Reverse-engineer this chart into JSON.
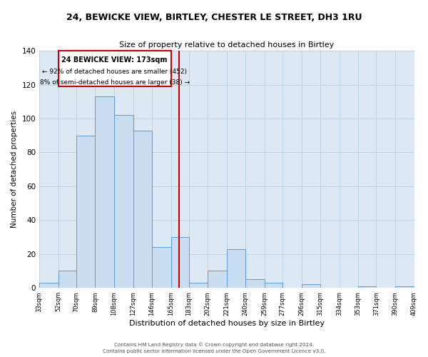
{
  "title": "24, BEWICKE VIEW, BIRTLEY, CHESTER LE STREET, DH3 1RU",
  "subtitle": "Size of property relative to detached houses in Birtley",
  "xlabel": "Distribution of detached houses by size in Birtley",
  "ylabel": "Number of detached properties",
  "bin_edges": [
    33,
    52,
    70,
    89,
    108,
    127,
    146,
    165,
    183,
    202,
    221,
    240,
    259,
    277,
    296,
    315,
    334,
    353,
    371,
    390,
    409
  ],
  "bin_labels": [
    "33sqm",
    "52sqm",
    "70sqm",
    "89sqm",
    "108sqm",
    "127sqm",
    "146sqm",
    "165sqm",
    "183sqm",
    "202sqm",
    "221sqm",
    "240sqm",
    "259sqm",
    "277sqm",
    "296sqm",
    "315sqm",
    "334sqm",
    "353sqm",
    "371sqm",
    "390sqm",
    "409sqm"
  ],
  "bar_heights": [
    3,
    10,
    90,
    113,
    102,
    93,
    24,
    30,
    3,
    10,
    23,
    5,
    3,
    0,
    2,
    0,
    0,
    1,
    0,
    1
  ],
  "bar_fill": "#c9ddf0",
  "bar_edge": "#5b9bd5",
  "vline_x": 173,
  "vline_color": "#cc0000",
  "annotation_title": "24 BEWICKE VIEW: 173sqm",
  "annotation_line1": "← 92% of detached houses are smaller (452)",
  "annotation_line2": "8% of semi-detached houses are larger (38) →",
  "annotation_box_edge": "#cc0000",
  "ylim": [
    0,
    140
  ],
  "yticks": [
    0,
    20,
    40,
    60,
    80,
    100,
    120,
    140
  ],
  "footer1": "Contains HM Land Registry data © Crown copyright and database right 2024.",
  "footer2": "Contains public sector information licensed under the Open Government Licence v3.0.",
  "background_color": "#dce9f5",
  "grid_color": "#b8cfe0"
}
